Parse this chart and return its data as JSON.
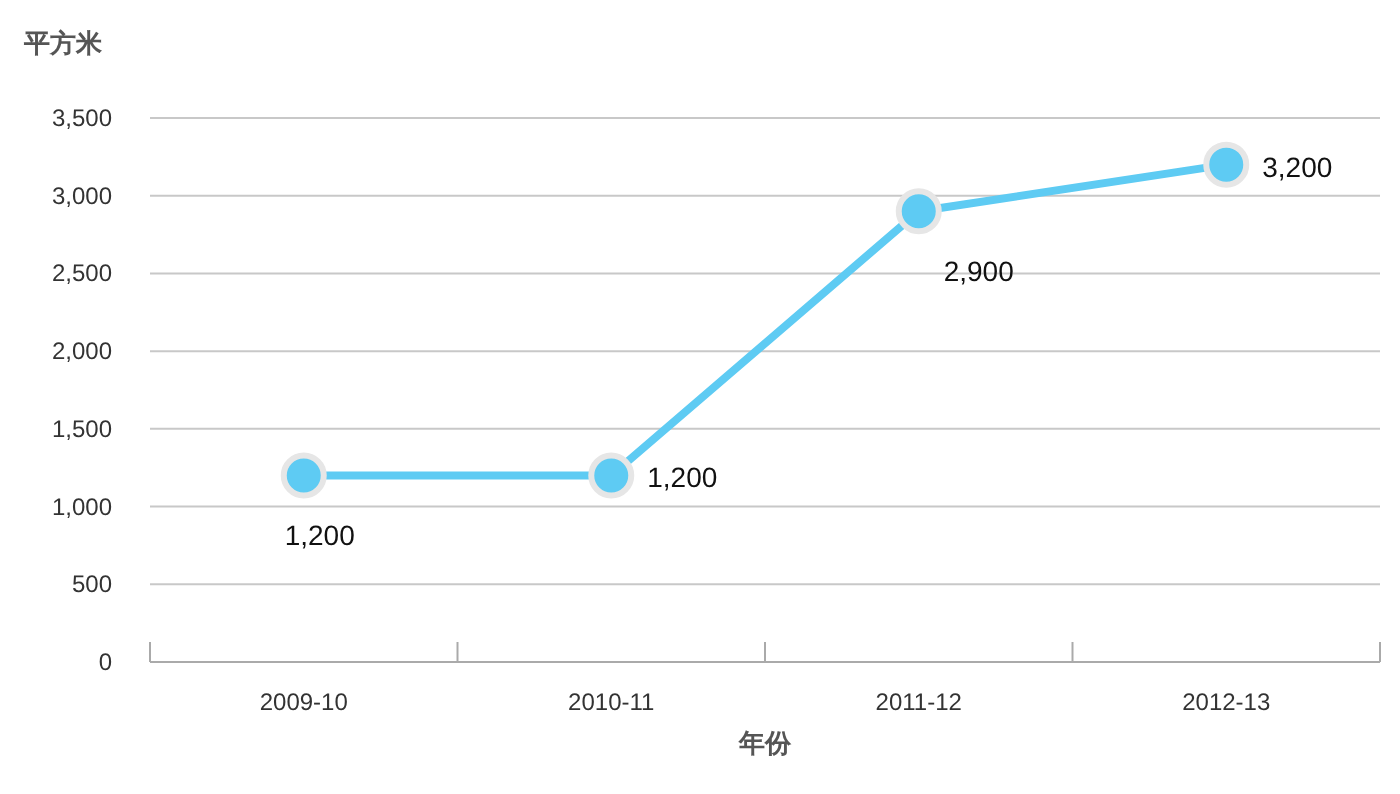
{
  "chart_data": {
    "type": "line",
    "ylabel": "平方米",
    "xlabel": "年份",
    "categories": [
      "2009-10",
      "2010-11",
      "2011-12",
      "2012-13"
    ],
    "series": [
      {
        "color": "#5ecbf3",
        "values": [
          1200,
          1200,
          2900,
          3200
        ],
        "value_labels": [
          "1,200",
          "1,200",
          "2,900",
          "3,200"
        ]
      }
    ],
    "ylim": [
      0,
      3500
    ],
    "yticks": [
      {
        "value": 0,
        "label": "0"
      },
      {
        "value": 500,
        "label": "500"
      },
      {
        "value": 1000,
        "label": "1,000"
      },
      {
        "value": 1500,
        "label": "1,500"
      },
      {
        "value": 2000,
        "label": "2,000"
      },
      {
        "value": 2500,
        "label": "2,500"
      },
      {
        "value": 3000,
        "label": "3,000"
      },
      {
        "value": 3500,
        "label": "3,500"
      }
    ],
    "grid": "y",
    "marker": "circle",
    "line_style": "solid"
  }
}
